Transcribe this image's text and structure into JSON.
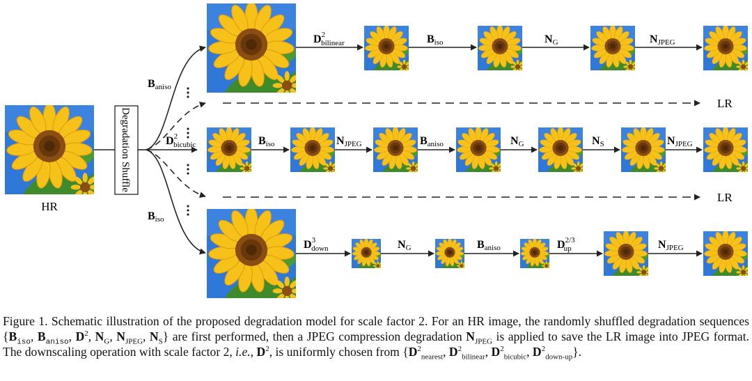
{
  "hr_label": "HR",
  "shuffle_box_label": "Degradation Shuffle",
  "lr_label": "LR",
  "branch_labels": {
    "top": {
      "main": "B",
      "sub": "aniso"
    },
    "middle": {
      "main": "D",
      "sub": "bicubic",
      "sup": "2"
    },
    "bottom": {
      "main": "B",
      "sub": "iso"
    }
  },
  "rows": {
    "top": [
      {
        "main": "D",
        "sup": "2",
        "sub": "bilinear"
      },
      {
        "main": "B",
        "sub": "iso"
      },
      {
        "main": "N",
        "sub": "G"
      },
      {
        "main": "N",
        "sub": "JPEG"
      }
    ],
    "middle": [
      {
        "main": "B",
        "sub": "iso"
      },
      {
        "main": "N",
        "sub": "JPEG"
      },
      {
        "main": "B",
        "sub": "aniso"
      },
      {
        "main": "N",
        "sub": "G"
      },
      {
        "main": "N",
        "sub": "S"
      },
      {
        "main": "N",
        "sub": "JPEG"
      }
    ],
    "bottom": [
      {
        "main": "D",
        "sup": "3",
        "sub": "down"
      },
      {
        "main": "N",
        "sub": "G"
      },
      {
        "main": "B",
        "sub": "aniso"
      },
      {
        "main": "D",
        "sup": "2/3",
        "sub": "up"
      },
      {
        "main": "N",
        "sub": "JPEG"
      }
    ]
  },
  "caption": {
    "part1": "Figure 1. Schematic illustration of the proposed degradation model for scale factor 2.  For an HR image, the randomly shuffled degradation sequences ",
    "part2": " are first performed, then a JPEG compression degradation ",
    "part3": " is applied to save the LR image into JPEG format.  The downscaling operation with scale factor 2, ",
    "part3_italic": "i.e.",
    "part4": ", ",
    "part5": ", is uniformly chosen from ",
    "part6": "."
  },
  "colors": {
    "sky": "#2f78d8",
    "petal": "#f6c21a",
    "petal_dark": "#e39a0c",
    "center": "#8a4e12",
    "center_dark": "#5a2f08",
    "leaf": "#3f8a2a"
  },
  "icon_names": [
    "sunflower-image",
    "arrow-icon",
    "dashed-arrow-icon",
    "ellipsis-icon"
  ]
}
